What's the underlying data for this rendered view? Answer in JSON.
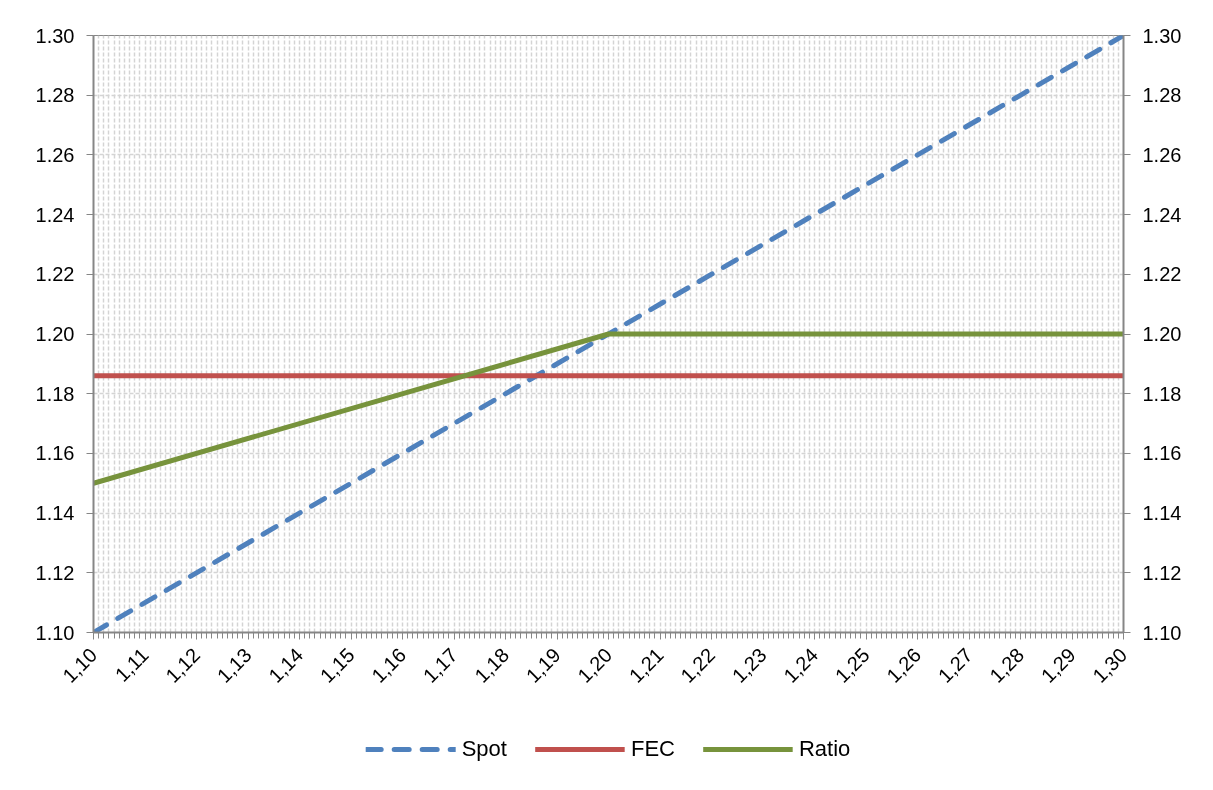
{
  "chart_data": {
    "type": "line",
    "x": [
      1.1,
      1.3
    ],
    "xlim": [
      1.1,
      1.3
    ],
    "xticks": [
      {
        "value": 1.1,
        "label": "1,10"
      },
      {
        "value": 1.11,
        "label": "1,11"
      },
      {
        "value": 1.12,
        "label": "1,12"
      },
      {
        "value": 1.13,
        "label": "1,13"
      },
      {
        "value": 1.14,
        "label": "1,14"
      },
      {
        "value": 1.15,
        "label": "1,15"
      },
      {
        "value": 1.16,
        "label": "1,16"
      },
      {
        "value": 1.17,
        "label": "1,17"
      },
      {
        "value": 1.18,
        "label": "1,18"
      },
      {
        "value": 1.19,
        "label": "1,19"
      },
      {
        "value": 1.2,
        "label": "1,20"
      },
      {
        "value": 1.21,
        "label": "1,21"
      },
      {
        "value": 1.22,
        "label": "1,22"
      },
      {
        "value": 1.23,
        "label": "1,23"
      },
      {
        "value": 1.24,
        "label": "1,24"
      },
      {
        "value": 1.25,
        "label": "1,25"
      },
      {
        "value": 1.26,
        "label": "1,26"
      },
      {
        "value": 1.27,
        "label": "1,27"
      },
      {
        "value": 1.28,
        "label": "1,28"
      },
      {
        "value": 1.29,
        "label": "1,29"
      },
      {
        "value": 1.3,
        "label": "1,30"
      }
    ],
    "ylim": [
      1.1,
      1.3
    ],
    "yticks": [
      {
        "value": 1.1,
        "label": "1.10"
      },
      {
        "value": 1.12,
        "label": "1.12"
      },
      {
        "value": 1.14,
        "label": "1.14"
      },
      {
        "value": 1.16,
        "label": "1.16"
      },
      {
        "value": 1.18,
        "label": "1.18"
      },
      {
        "value": 1.2,
        "label": "1.20"
      },
      {
        "value": 1.22,
        "label": "1.22"
      },
      {
        "value": 1.24,
        "label": "1.24"
      },
      {
        "value": 1.26,
        "label": "1.26"
      },
      {
        "value": 1.28,
        "label": "1.28"
      },
      {
        "value": 1.3,
        "label": "1.30"
      }
    ],
    "y2lim": [
      1.1,
      1.3
    ],
    "y2ticks": [
      {
        "value": 1.1,
        "label": "1.10"
      },
      {
        "value": 1.12,
        "label": "1.12"
      },
      {
        "value": 1.14,
        "label": "1.14"
      },
      {
        "value": 1.16,
        "label": "1.16"
      },
      {
        "value": 1.18,
        "label": "1.18"
      },
      {
        "value": 1.2,
        "label": "1.20"
      },
      {
        "value": 1.22,
        "label": "1.22"
      },
      {
        "value": 1.24,
        "label": "1.24"
      },
      {
        "value": 1.26,
        "label": "1.26"
      },
      {
        "value": 1.28,
        "label": "1.28"
      },
      {
        "value": 1.3,
        "label": "1.30"
      }
    ],
    "series": [
      {
        "name": "Spot",
        "color": "#4f81bd",
        "line_style": "dashed",
        "values": [
          1.1,
          1.3
        ]
      },
      {
        "name": "FEC",
        "color": "#c0504d",
        "line_style": "solid",
        "values": [
          1.186,
          1.186
        ]
      },
      {
        "name": "Ratio",
        "color": "#77933c",
        "line_style": "solid",
        "x": [
          1.1,
          1.2,
          1.3
        ],
        "values": [
          1.15,
          1.2,
          1.2
        ]
      }
    ],
    "grid": true,
    "legend": "bottom"
  }
}
